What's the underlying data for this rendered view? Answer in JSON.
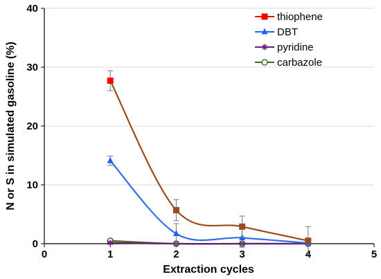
{
  "chart_data": {
    "type": "line",
    "xlabel": "Extraction cycles",
    "ylabel": "N or S  in simulated gasoline  (%)",
    "xlim": [
      0,
      5
    ],
    "ylim": [
      0,
      40
    ],
    "x_ticks": [
      "0",
      "1",
      "2",
      "3",
      "4",
      "5"
    ],
    "y_ticks": [
      "0",
      "10",
      "20",
      "30",
      "40"
    ],
    "grid": "horizontal",
    "legend_position": "top-right",
    "series": [
      {
        "name": "thiophene",
        "color": "#ff0000",
        "line_color": "#9b4a1e",
        "marker": "square",
        "x": [
          1,
          2,
          3,
          4
        ],
        "y": [
          27.7,
          5.7,
          2.9,
          0.5
        ],
        "error": [
          1.7,
          1.8,
          1.8,
          2.4
        ]
      },
      {
        "name": "DBT",
        "color": "#1f62ff",
        "line_color": "#2f6fe8",
        "marker": "triangle",
        "x": [
          1,
          2,
          3,
          4
        ],
        "y": [
          14.1,
          1.7,
          1.0,
          0.1
        ],
        "error": [
          0.8,
          1.7,
          1.6,
          0.0
        ]
      },
      {
        "name": "pyridine",
        "color": "#6a1b7a",
        "line_color": "#6a1b7a",
        "marker": "asterisk",
        "x": [
          1,
          2,
          3,
          4
        ],
        "y": [
          0.15,
          0.0,
          0.0,
          0.0
        ],
        "error": [
          0,
          0,
          0,
          0
        ]
      },
      {
        "name": "carbazole",
        "color": "#3d6b1e",
        "line_color": "#3d6b1e",
        "marker": "circle",
        "x": [
          1,
          2,
          3,
          4
        ],
        "y": [
          0.5,
          0.0,
          0.0,
          0.0
        ],
        "error": [
          0,
          0,
          0,
          0
        ]
      }
    ]
  }
}
